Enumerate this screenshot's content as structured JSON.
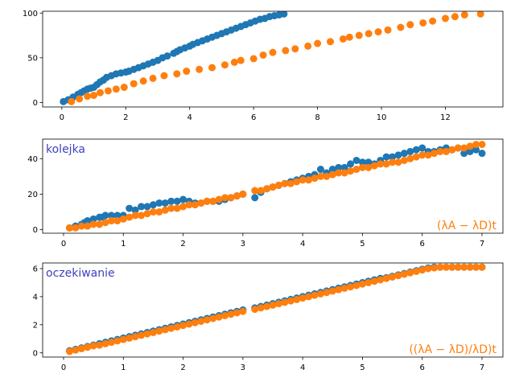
{
  "colors": {
    "series1": "#1f77b4",
    "series2": "#ff7f0e",
    "annotation_left": "#3f3fbf",
    "annotation_right": "#ff7f0e"
  },
  "chart_data": [
    {
      "type": "scatter",
      "xlim": [
        -0.6,
        13.8
      ],
      "ylim": [
        -5,
        102
      ],
      "xticks": [
        0,
        2,
        4,
        6,
        8,
        10,
        12
      ],
      "yticks": [
        0,
        50,
        100
      ],
      "annotations": [],
      "series": [
        {
          "color": "#1f77b4",
          "x": [
            0.05,
            0.2,
            0.35,
            0.5,
            0.6,
            0.7,
            0.8,
            0.9,
            1.0,
            1.1,
            1.2,
            1.3,
            1.4,
            1.55,
            1.7,
            1.85,
            2.0,
            2.1,
            2.25,
            2.4,
            2.55,
            2.7,
            2.85,
            3.0,
            3.15,
            3.3,
            3.5,
            3.6,
            3.7,
            3.85,
            4.0,
            4.1,
            4.25,
            4.4,
            4.55,
            4.7,
            4.85,
            5.0,
            5.15,
            5.3,
            5.45,
            5.6,
            5.75,
            5.9,
            6.05,
            6.2,
            6.35,
            6.5,
            6.65,
            6.8,
            6.95
          ],
          "y": [
            1,
            3,
            6,
            9,
            11,
            13,
            15,
            16,
            17,
            20,
            23,
            25,
            28,
            30,
            32,
            33,
            34,
            35,
            37,
            39,
            41,
            43,
            45,
            47,
            50,
            52,
            55,
            57,
            59,
            61,
            63,
            65,
            67,
            69,
            71,
            73,
            75,
            77,
            79,
            81,
            83,
            85,
            87,
            89,
            91,
            93,
            94,
            96,
            97,
            98,
            99
          ]
        },
        {
          "color": "#ff7f0e",
          "x": [
            0.3,
            0.55,
            0.8,
            1.0,
            1.2,
            1.45,
            1.7,
            1.95,
            2.25,
            2.55,
            2.85,
            3.2,
            3.6,
            3.9,
            4.3,
            4.7,
            5.1,
            5.4,
            5.6,
            6.0,
            6.3,
            6.6,
            7.0,
            7.3,
            7.7,
            8.0,
            8.4,
            8.8,
            9.0,
            9.3,
            9.6,
            9.9,
            10.2,
            10.6,
            10.9,
            11.3,
            11.6,
            12.0,
            12.3,
            12.6,
            13.1
          ],
          "y": [
            1,
            4,
            7,
            8,
            11,
            13,
            15,
            17,
            21,
            24,
            27,
            30,
            32,
            35,
            37,
            39,
            42,
            45,
            47,
            49,
            53,
            56,
            58,
            60,
            63,
            66,
            68,
            71,
            73,
            75,
            77,
            79,
            81,
            84,
            87,
            89,
            91,
            94,
            96,
            98,
            99
          ]
        }
      ]
    },
    {
      "type": "scatter",
      "xlim": [
        -0.35,
        7.35
      ],
      "ylim": [
        -2,
        51
      ],
      "xticks": [
        0,
        1,
        2,
        3,
        4,
        5,
        6,
        7
      ],
      "yticks": [
        0,
        20,
        40
      ],
      "annotations": [
        {
          "text": "kolejka",
          "position": "top-left",
          "color": "#3f3fbf"
        },
        {
          "text": "(λA − λD)t",
          "position": "bottom-right",
          "color": "#ff7f0e"
        }
      ],
      "series": [
        {
          "color": "#1f77b4",
          "x": [
            0.1,
            0.2,
            0.3,
            0.35,
            0.4,
            0.5,
            0.6,
            0.65,
            0.7,
            0.8,
            0.9,
            1.0,
            1.1,
            1.2,
            1.3,
            1.4,
            1.5,
            1.6,
            1.7,
            1.8,
            1.9,
            2.0,
            2.1,
            2.2,
            2.3,
            2.4,
            2.5,
            2.6,
            2.7,
            2.8,
            2.9,
            3.0,
            3.2,
            3.3,
            3.4,
            3.5,
            3.6,
            3.7,
            3.8,
            3.9,
            4.0,
            4.1,
            4.2,
            4.3,
            4.4,
            4.5,
            4.6,
            4.7,
            4.8,
            4.9,
            5.0,
            5.1,
            5.2,
            5.3,
            5.4,
            5.5,
            5.6,
            5.7,
            5.8,
            5.9,
            6.0,
            6.1,
            6.2,
            6.3,
            6.4,
            6.5,
            6.6,
            6.7,
            6.8,
            6.9,
            7.0
          ],
          "y": [
            1,
            2,
            3,
            4,
            5,
            6,
            7,
            7,
            8,
            8,
            8,
            8,
            12,
            11,
            13,
            13,
            14,
            15,
            15,
            16,
            16,
            17,
            16,
            15,
            15,
            16,
            16,
            16,
            17,
            18,
            19,
            20,
            18,
            21,
            23,
            24,
            25,
            26,
            27,
            28,
            29,
            30,
            31,
            34,
            32,
            34,
            35,
            35,
            37,
            39,
            38,
            38,
            37,
            39,
            41,
            41,
            42,
            43,
            44,
            45,
            46,
            44,
            44,
            45,
            46,
            45,
            46,
            43,
            44,
            45,
            43
          ]
        },
        {
          "color": "#ff7f0e",
          "x": [
            0.1,
            0.2,
            0.3,
            0.4,
            0.5,
            0.6,
            0.7,
            0.8,
            0.9,
            1.0,
            1.1,
            1.2,
            1.3,
            1.4,
            1.5,
            1.6,
            1.7,
            1.8,
            1.9,
            2.0,
            2.1,
            2.2,
            2.3,
            2.4,
            2.5,
            2.6,
            2.7,
            2.8,
            2.9,
            3.0,
            3.2,
            3.3,
            3.4,
            3.5,
            3.6,
            3.7,
            3.8,
            3.9,
            4.0,
            4.1,
            4.2,
            4.3,
            4.4,
            4.5,
            4.6,
            4.7,
            4.8,
            4.9,
            5.0,
            5.1,
            5.2,
            5.3,
            5.4,
            5.5,
            5.6,
            5.7,
            5.8,
            5.9,
            6.0,
            6.1,
            6.2,
            6.3,
            6.4,
            6.5,
            6.6,
            6.7,
            6.8,
            6.9,
            7.0
          ],
          "y": [
            1,
            1,
            2,
            2,
            3,
            3,
            4,
            5,
            5,
            6,
            7,
            8,
            8,
            9,
            10,
            10,
            11,
            12,
            12,
            13,
            14,
            14,
            15,
            16,
            16,
            17,
            18,
            18,
            19,
            20,
            22,
            22,
            23,
            24,
            25,
            26,
            26,
            27,
            28,
            28,
            29,
            30,
            30,
            31,
            32,
            32,
            33,
            34,
            35,
            35,
            36,
            37,
            37,
            38,
            38,
            39,
            40,
            41,
            42,
            42,
            43,
            44,
            44,
            45,
            46,
            46,
            47,
            48,
            48
          ]
        }
      ]
    },
    {
      "type": "scatter",
      "xlim": [
        -0.35,
        7.35
      ],
      "ylim": [
        -0.3,
        6.4
      ],
      "xticks": [
        0,
        1,
        2,
        3,
        4,
        5,
        6,
        7
      ],
      "yticks": [
        0,
        2,
        4,
        6
      ],
      "annotations": [
        {
          "text": "oczekiwanie",
          "position": "top-left",
          "color": "#3f3fbf"
        },
        {
          "text": "((λA − λD)/λD)t",
          "position": "bottom-right",
          "color": "#ff7f0e"
        }
      ],
      "series": [
        {
          "color": "#1f77b4",
          "x": [
            0.1,
            0.2,
            0.3,
            0.4,
            0.5,
            0.6,
            0.7,
            0.8,
            0.9,
            1.0,
            1.1,
            1.2,
            1.3,
            1.4,
            1.5,
            1.6,
            1.7,
            1.8,
            1.9,
            2.0,
            2.1,
            2.2,
            2.3,
            2.4,
            2.5,
            2.6,
            2.7,
            2.8,
            2.9,
            3.0,
            3.2,
            3.3,
            3.4,
            3.5,
            3.6,
            3.7,
            3.8,
            3.9,
            4.0,
            4.1,
            4.2,
            4.3,
            4.4,
            4.5,
            4.6,
            4.7,
            4.8,
            4.9,
            5.0,
            5.1,
            5.2,
            5.3,
            5.4,
            5.5,
            5.6,
            5.7,
            5.8,
            5.9,
            6.0,
            6.1,
            6.2,
            6.3,
            6.4,
            6.5,
            6.6,
            6.7,
            6.8,
            6.9,
            7.0
          ],
          "y": [
            0.15,
            0.25,
            0.35,
            0.45,
            0.55,
            0.65,
            0.75,
            0.85,
            0.95,
            1.05,
            1.15,
            1.25,
            1.35,
            1.45,
            1.55,
            1.65,
            1.75,
            1.85,
            1.95,
            2.05,
            2.15,
            2.25,
            2.35,
            2.45,
            2.55,
            2.65,
            2.75,
            2.85,
            2.95,
            3.05,
            3.2,
            3.3,
            3.4,
            3.5,
            3.6,
            3.7,
            3.8,
            3.9,
            4.0,
            4.1,
            4.2,
            4.3,
            4.4,
            4.5,
            4.6,
            4.7,
            4.8,
            4.9,
            5.0,
            5.1,
            5.2,
            5.3,
            5.35,
            5.45,
            5.55,
            5.65,
            5.75,
            5.85,
            5.95,
            6.05,
            6.1,
            6.1,
            6.1,
            6.1,
            6.1,
            6.1,
            6.1,
            6.1,
            6.1
          ]
        },
        {
          "color": "#ff7f0e",
          "x": [
            0.1,
            0.2,
            0.3,
            0.4,
            0.5,
            0.6,
            0.7,
            0.8,
            0.9,
            1.0,
            1.1,
            1.2,
            1.3,
            1.4,
            1.5,
            1.6,
            1.7,
            1.8,
            1.9,
            2.0,
            2.1,
            2.2,
            2.3,
            2.4,
            2.5,
            2.6,
            2.7,
            2.8,
            2.9,
            3.0,
            3.2,
            3.3,
            3.4,
            3.5,
            3.6,
            3.7,
            3.8,
            3.9,
            4.0,
            4.1,
            4.2,
            4.3,
            4.4,
            4.5,
            4.6,
            4.7,
            4.8,
            4.9,
            5.0,
            5.1,
            5.2,
            5.3,
            5.4,
            5.5,
            5.6,
            5.7,
            5.8,
            5.9,
            6.0,
            6.1,
            6.2,
            6.3,
            6.4,
            6.5,
            6.6,
            6.7,
            6.8,
            6.9,
            7.0
          ],
          "y": [
            0.1,
            0.2,
            0.3,
            0.4,
            0.5,
            0.55,
            0.65,
            0.75,
            0.85,
            0.95,
            1.05,
            1.15,
            1.25,
            1.35,
            1.45,
            1.55,
            1.65,
            1.75,
            1.85,
            1.95,
            2.05,
            2.15,
            2.25,
            2.35,
            2.45,
            2.55,
            2.65,
            2.75,
            2.85,
            2.95,
            3.1,
            3.2,
            3.3,
            3.4,
            3.5,
            3.6,
            3.7,
            3.8,
            3.9,
            4.0,
            4.1,
            4.2,
            4.3,
            4.4,
            4.5,
            4.6,
            4.7,
            4.8,
            4.9,
            5.0,
            5.1,
            5.2,
            5.3,
            5.4,
            5.5,
            5.6,
            5.7,
            5.8,
            5.9,
            6.0,
            6.05,
            6.1,
            6.1,
            6.1,
            6.1,
            6.1,
            6.1,
            6.1,
            6.1
          ]
        }
      ]
    }
  ]
}
